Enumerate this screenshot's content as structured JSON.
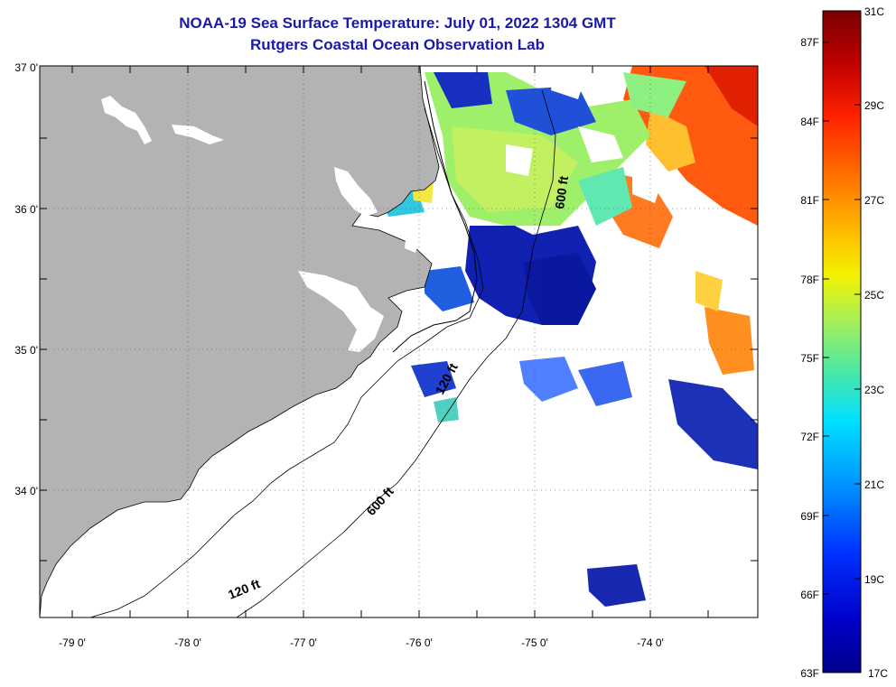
{
  "title": {
    "line1": "NOAA-19 Sea Surface Temperature:  July 01, 2022 1304 GMT",
    "line2": "Rutgers Coastal Ocean Observation Lab"
  },
  "map": {
    "lat_labels": [
      "37 0'",
      "36 0'",
      "35 0'",
      "34 0'"
    ],
    "lon_labels": [
      "-79 0'",
      "-78 0'",
      "-77 0'",
      "-76 0'",
      "-75 0'",
      "-74 0'"
    ],
    "contours": [
      {
        "label": "600 ft"
      },
      {
        "label": "120 ft"
      },
      {
        "label": "600 ft"
      },
      {
        "label": "120 ft"
      }
    ]
  },
  "colorbar": {
    "celsius_labels": [
      "31C",
      "29C",
      "27C",
      "25C",
      "23C",
      "21C",
      "19C",
      "17C"
    ],
    "fahrenheit_labels": [
      "87F",
      "84F",
      "81F",
      "78F",
      "75F",
      "72F",
      "69F",
      "66F",
      "63F"
    ]
  },
  "colors": {
    "land": "#b3b3b3",
    "title": "#1a1aa6"
  }
}
